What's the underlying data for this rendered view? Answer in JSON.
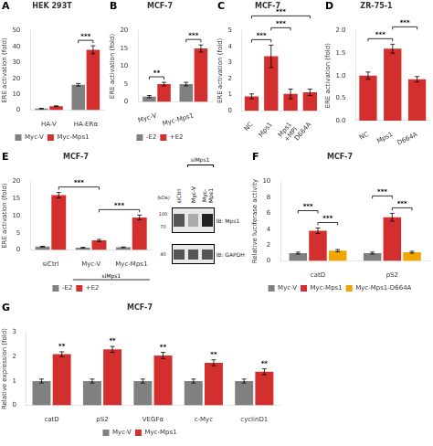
{
  "chart_data": [
    {
      "panel": "A",
      "type": "bar",
      "title": "HEK 293T",
      "y_label": "ERE activation (fold)",
      "categories": [
        "HA-V",
        "HA-ERα"
      ],
      "series": [
        {
          "name": "Myc-V",
          "color": "#808080",
          "values": [
            1.0,
            16.0
          ],
          "errors": [
            0.15,
            0.8
          ]
        },
        {
          "name": "Myc-Mps1",
          "color": "#d32f2f",
          "values": [
            2.5,
            38.0
          ],
          "errors": [
            0.3,
            2.5
          ]
        }
      ],
      "ylim": [
        0,
        50
      ],
      "yticks": [
        0,
        10,
        20,
        30,
        40,
        50
      ],
      "grid": false,
      "legend": "bottom",
      "brackets": [
        {
          "label": "***",
          "from": [
            "HA-ERα",
            "Myc-V"
          ],
          "to": [
            "HA-ERα",
            "Myc-Mps1"
          ]
        }
      ]
    },
    {
      "panel": "B",
      "type": "bar",
      "title": "MCF-7",
      "y_label": "ERE activation (fold)",
      "categories": [
        "Myc-V",
        "Myc-Mps1"
      ],
      "series": [
        {
          "name": "-E2",
          "color": "#808080",
          "values": [
            1.5,
            5.0
          ],
          "errors": [
            0.3,
            0.5
          ]
        },
        {
          "name": "+E2",
          "color": "#d32f2f",
          "values": [
            5.0,
            15.0
          ],
          "errors": [
            0.5,
            1.0
          ]
        }
      ],
      "ylim": [
        0,
        20
      ],
      "yticks": [
        0,
        5,
        10,
        15,
        20
      ],
      "grid": false,
      "legend": "bottom",
      "brackets": [
        {
          "label": "**",
          "from": [
            "Myc-V",
            "-E2"
          ],
          "to": [
            "Myc-V",
            "+E2"
          ]
        },
        {
          "label": "***",
          "from": [
            "Myc-Mps1",
            "-E2"
          ],
          "to": [
            "Myc-Mps1",
            "+E2"
          ]
        }
      ]
    },
    {
      "panel": "C",
      "type": "bar",
      "title": "MCF-7",
      "y_label": "ERE activation (fold)",
      "categories": [
        "NC",
        "Mps1",
        "Mps1\n+MPI",
        "D664A"
      ],
      "series": [
        {
          "color": "#d32f2f",
          "values": [
            0.9,
            3.4,
            1.05,
            1.15
          ],
          "errors": [
            0.15,
            0.7,
            0.3,
            0.2
          ]
        }
      ],
      "ylim": [
        0,
        5
      ],
      "yticks": [
        0,
        1,
        2,
        3,
        4,
        5
      ],
      "grid": false,
      "legend": false,
      "brackets": [
        {
          "label": "***",
          "from": [
            "NC"
          ],
          "to": [
            "Mps1"
          ]
        },
        {
          "label": "***",
          "from": [
            "Mps1"
          ],
          "to": [
            "Mps1\n+MPI"
          ]
        },
        {
          "label": "***",
          "from": [
            "NC"
          ],
          "to": [
            "D664A"
          ]
        }
      ]
    },
    {
      "panel": "D",
      "type": "bar",
      "title": "ZR-75-1",
      "y_label": "ERE activation (fold)",
      "categories": [
        "NC",
        "Mps1",
        "D664A"
      ],
      "series": [
        {
          "color": "#d32f2f",
          "values": [
            1.0,
            1.6,
            0.92
          ],
          "errors": [
            0.08,
            0.1,
            0.06
          ]
        }
      ],
      "ylim": [
        0.0,
        2.0
      ],
      "yticks": [
        {
          "value": 0.0,
          "label": "0.0"
        },
        0.5,
        {
          "value": 1.0,
          "label": "1.0"
        },
        1.5,
        {
          "value": 2.0,
          "label": "2.0"
        }
      ],
      "grid": false,
      "legend": false,
      "brackets": [
        {
          "label": "***",
          "from": [
            "NC"
          ],
          "to": [
            "Mps1"
          ]
        },
        {
          "label": "***",
          "from": [
            "Mps1"
          ],
          "to": [
            "D664A"
          ]
        }
      ]
    },
    {
      "panel": "E",
      "type": "bar",
      "title": "MCF-7",
      "y_label": "ERE activation (fold)",
      "categories": [
        "siCtrl",
        "Myc-V",
        "Myc-Mps1"
      ],
      "series": [
        {
          "name": "-E2",
          "color": "#808080",
          "values": [
            1.0,
            0.7,
            0.8
          ],
          "errors": [
            0.1,
            0.1,
            0.1
          ]
        },
        {
          "name": "+E2",
          "color": "#d32f2f",
          "values": [
            16.0,
            2.8,
            9.5
          ],
          "errors": [
            0.8,
            0.3,
            0.7
          ]
        }
      ],
      "ylim": [
        0,
        20
      ],
      "yticks": [
        0,
        5,
        10,
        15,
        20
      ],
      "grid": false,
      "legend": "bottom",
      "brackets": [
        {
          "label": "***",
          "from": [
            "Myc-V",
            "+E2"
          ],
          "to": [
            "Myc-Mps1",
            "+E2"
          ]
        },
        {
          "label": "***",
          "from": [
            "siCtrl",
            "+E2"
          ],
          "to": [
            "Myc-V",
            "+E2"
          ]
        }
      ],
      "group_labels": [
        {
          "text": "siMps1",
          "categories": [
            "Myc-V",
            "Myc-Mps1"
          ]
        }
      ]
    },
    {
      "type": "blot",
      "group_label": "siMps1",
      "categories": [
        "siCtrl",
        "Myc-V",
        "Myc-\nMps1"
      ],
      "group": [
        "Myc-V",
        "Myc-\nMps1"
      ],
      "unit_label": "(kDa)",
      "rows": [
        {
          "name": "IB: Mps1",
          "markers": [
            100,
            70
          ],
          "colors": [
            "#555555",
            "#aaaaaa",
            "#222222"
          ]
        },
        {
          "name": "IB: GAPDH",
          "markers": [
            40
          ],
          "colors": [
            "#555555",
            "#555555",
            "#555555"
          ]
        }
      ]
    },
    {
      "panel": "F",
      "type": "bar",
      "title": "MCF-7",
      "y_label": "Relative luciferase activity",
      "categories": [
        "catD",
        "pS2"
      ],
      "series": [
        {
          "name": "Myc-V",
          "color": "#808080",
          "values": [
            1.0,
            1.0
          ],
          "errors": [
            0.12,
            0.12
          ]
        },
        {
          "name": "Myc-Mps1",
          "color": "#d32f2f",
          "values": [
            3.8,
            5.5
          ],
          "errors": [
            0.35,
            0.5
          ]
        },
        {
          "name": "Myc-Mps1-D664A",
          "color": "#f0a500",
          "values": [
            1.3,
            1.1
          ],
          "errors": [
            0.15,
            0.12
          ]
        }
      ],
      "ylim": [
        0,
        10
      ],
      "yticks": [
        0,
        2,
        4,
        6,
        8,
        10
      ],
      "grid": false,
      "legend": "bottom",
      "brackets": [
        {
          "label": "***",
          "from": [
            "catD",
            "Myc-Mps1"
          ],
          "to": [
            "catD",
            "Myc-Mps1-D664A"
          ]
        },
        {
          "label": "***",
          "from": [
            "catD",
            "Myc-V"
          ],
          "to": [
            "catD",
            "Myc-Mps1"
          ]
        },
        {
          "label": "***",
          "from": [
            "pS2",
            "Myc-Mps1"
          ],
          "to": [
            "pS2",
            "Myc-Mps1-D664A"
          ]
        },
        {
          "label": "***",
          "from": [
            "pS2",
            "Myc-V"
          ],
          "to": [
            "pS2",
            "Myc-Mps1"
          ]
        }
      ]
    },
    {
      "panel": "G",
      "type": "bar",
      "title": "MCF-7",
      "y_label": "Relative expression (fold)",
      "categories": [
        "catD",
        "pS2",
        "VEGFα",
        "c-Myc",
        "cyclinD1"
      ],
      "series": [
        {
          "name": "Myc-V",
          "color": "#808080",
          "values": [
            1.0,
            1.0,
            1.0,
            1.0,
            1.0
          ],
          "errors": [
            0.08,
            0.08,
            0.08,
            0.08,
            0.08
          ]
        },
        {
          "name": "Myc-Mps1",
          "color": "#d32f2f",
          "values": [
            2.1,
            2.3,
            2.05,
            1.75,
            1.38
          ],
          "errors": [
            0.1,
            0.12,
            0.13,
            0.12,
            0.12
          ],
          "annotations": [
            "**",
            "**",
            "**",
            "**",
            "**"
          ]
        }
      ],
      "ylim": [
        0,
        3
      ],
      "yticks": [
        0,
        1,
        2,
        3
      ],
      "grid": false,
      "legend": "bottom"
    }
  ]
}
